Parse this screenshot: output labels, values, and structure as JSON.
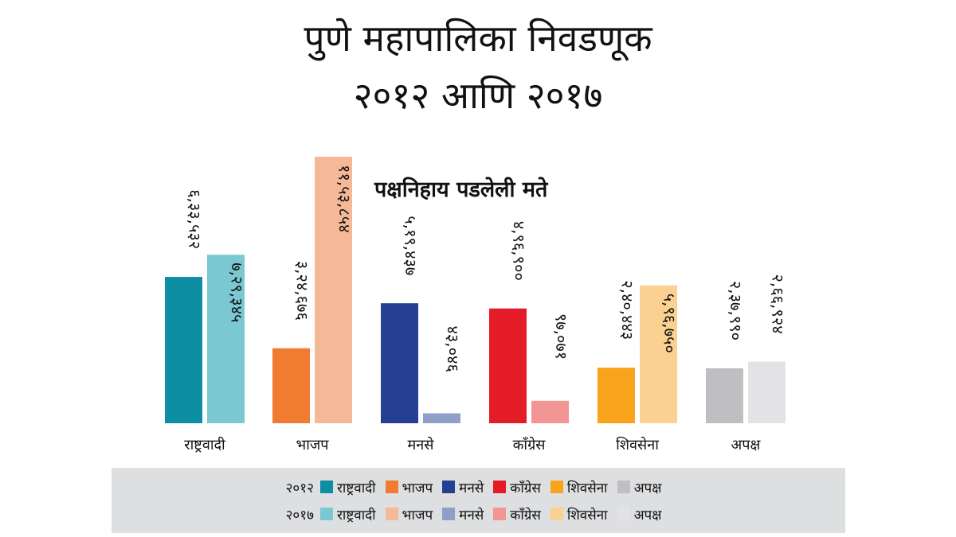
{
  "title_line1": "पुणे महापालिका निवडणूक",
  "title_line2": "२०१२ आणि २०१७",
  "subtitle": "पक्षनिहाय पडलेली मते",
  "chart_data": {
    "type": "bar",
    "categories": [
      "राष्ट्रवादी",
      "भाजप",
      "मनसे",
      "काँग्रेस",
      "शिवसेना",
      "अपक्ष"
    ],
    "series": [
      {
        "name": "२०१२",
        "values": [
          633532,
          324676,
          519437,
          496900,
          240443,
          237990
        ],
        "labels": [
          "६,३३,५३२",
          "३,२४,६७६",
          "५,१९,४३७",
          "४,९६,९००",
          "२,४०,४४३",
          "२,३७,९९०"
        ],
        "colors": [
          "#0d8ea2",
          "#f07c32",
          "#253f92",
          "#e41c27",
          "#f9a21b",
          "#bfbfc1"
        ]
      },
      {
        "name": "२०१७",
        "values": [
          729345,
          1153854,
          43046,
          97071,
          596750,
          266924
        ],
        "labels": [
          "७,२९,३४५",
          "११,५३,८५४",
          "४३,०४६",
          "९७,०७१",
          "५,९६,७५०",
          "२,६६,९२४"
        ],
        "colors": [
          "#7ac8d2",
          "#f6b998",
          "#8fa0c8",
          "#f29594",
          "#fbd191",
          "#e3e3e5"
        ]
      }
    ],
    "xlabel": "",
    "ylabel": "",
    "ylim": [
      0,
      1153854
    ],
    "grid": false,
    "legend_position": "bottom"
  },
  "legend": {
    "rows": [
      {
        "year": "२०१२",
        "items": [
          {
            "label": "राष्ट्रवादी",
            "color": "#0d8ea2"
          },
          {
            "label": "भाजप",
            "color": "#f07c32"
          },
          {
            "label": "मनसे",
            "color": "#253f92"
          },
          {
            "label": "काँग्रेस",
            "color": "#e41c27"
          },
          {
            "label": "शिवसेना",
            "color": "#f9a21b"
          },
          {
            "label": "अपक्ष",
            "color": "#bfbfc1"
          }
        ]
      },
      {
        "year": "२०१७",
        "items": [
          {
            "label": "राष्ट्रवादी",
            "color": "#7ac8d2"
          },
          {
            "label": "भाजप",
            "color": "#f6b998"
          },
          {
            "label": "मनसे",
            "color": "#8fa0c8"
          },
          {
            "label": "काँग्रेस",
            "color": "#f29594"
          },
          {
            "label": "शिवसेना",
            "color": "#fbd191"
          },
          {
            "label": "अपक्ष",
            "color": "#e3e3e5"
          }
        ]
      }
    ]
  }
}
